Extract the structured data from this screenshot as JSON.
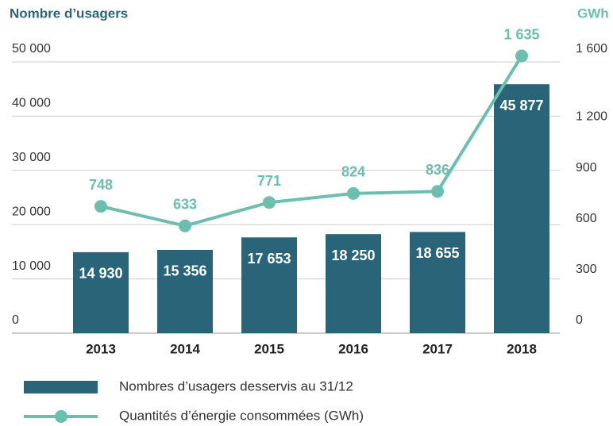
{
  "chart_data": {
    "type": "bar",
    "ylabel": "Nombre d’usagers",
    "y2label": "GWh",
    "categories": [
      "2013",
      "2014",
      "2015",
      "2016",
      "2017",
      "2018"
    ],
    "series": [
      {
        "name": "Nombres d’usagers desservis au 31/12",
        "type": "bar",
        "color": "#2a6478",
        "values": [
          14930,
          15356,
          17653,
          18250,
          18655,
          45877
        ],
        "value_labels": [
          "14 930",
          "15 356",
          "17 653",
          "18 250",
          "18 655",
          "45 877"
        ]
      },
      {
        "name": "Quantités d’énergie consommées (GWh)",
        "type": "line",
        "axis": "y2",
        "color": "#6cbfae",
        "values": [
          748,
          633,
          771,
          824,
          836,
          1635
        ],
        "value_labels": [
          "748",
          "633",
          "771",
          "824",
          "836",
          "1 635"
        ]
      }
    ],
    "ylim": [
      0,
      50000
    ],
    "yticks": [
      0,
      {
        "value": 10000,
        "label": "10 000"
      },
      {
        "value": 20000,
        "label": "20 000"
      },
      {
        "value": 30000,
        "label": "30 000"
      },
      {
        "value": 40000,
        "label": "40 000"
      },
      {
        "value": 50000,
        "label": "50 000"
      }
    ],
    "y2lim": [
      0,
      1600
    ],
    "y2ticks": [
      0,
      300,
      600,
      900,
      {
        "value": 1200,
        "label": "1 200"
      },
      {
        "value": 1600,
        "label": "1 600"
      }
    ],
    "grid": true
  }
}
